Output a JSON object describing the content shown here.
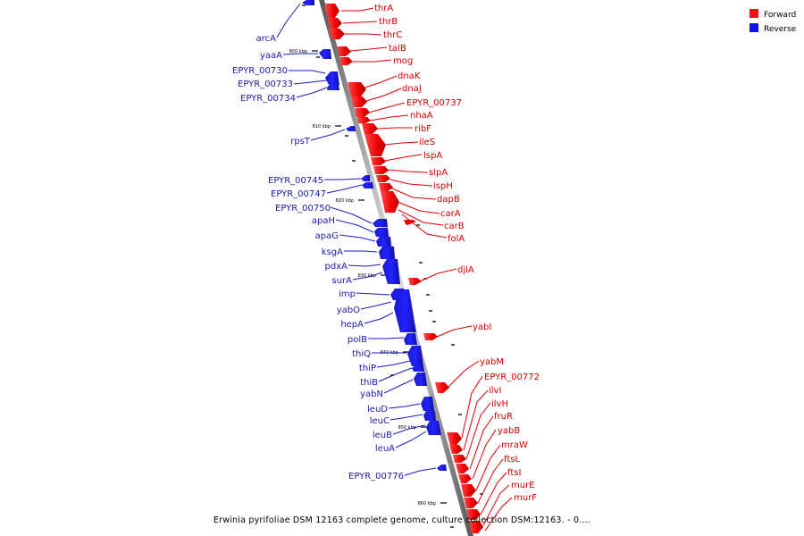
{
  "legend": [
    {
      "label": "Forward",
      "color": "#ee1111"
    },
    {
      "label": "Reverse",
      "color": "#1111ee"
    }
  ],
  "caption": "Erwinia pyrifoliae DSM 12163 complete genome, culture collection DSM:12163. - 0....",
  "ruler": [
    {
      "label": "800 kbp"
    },
    {
      "label": "810 kbp"
    },
    {
      "label": "820 kbp"
    },
    {
      "label": "830 kbp"
    },
    {
      "label": "840 kbp"
    },
    {
      "label": "850 kbp"
    },
    {
      "label": "860 kbp"
    }
  ],
  "genes_forward": [
    "thrA",
    "thrB",
    "thrC",
    "talB",
    "mog",
    "dnaK",
    "dnaJ",
    "EPYR_00737",
    "nhaA",
    "ribF",
    "ileS",
    "lspA",
    "slpA",
    "ispH",
    "dapB",
    "carA",
    "carB",
    "folA",
    "djlA",
    "yabI",
    "yabM",
    "EPYR_00772",
    "ilvI",
    "ilvH",
    "fruR",
    "yabB",
    "mraW",
    "ftsL",
    "ftsI",
    "murE",
    "murF"
  ],
  "genes_reverse": [
    "arcA",
    "yaaA",
    "EPYR_00730",
    "EPYR_00733",
    "EPYR_00734",
    "rpsT",
    "EPYR_00745",
    "EPYR_00747",
    "EPYR_00750",
    "apaH",
    "apaG",
    "ksgA",
    "pdxA",
    "surA",
    "imp",
    "yabO",
    "hepA",
    "polB",
    "thiQ",
    "thiP",
    "thiB",
    "yabN",
    "leuD",
    "leuC",
    "leuB",
    "leuA",
    "EPYR_00776"
  ]
}
